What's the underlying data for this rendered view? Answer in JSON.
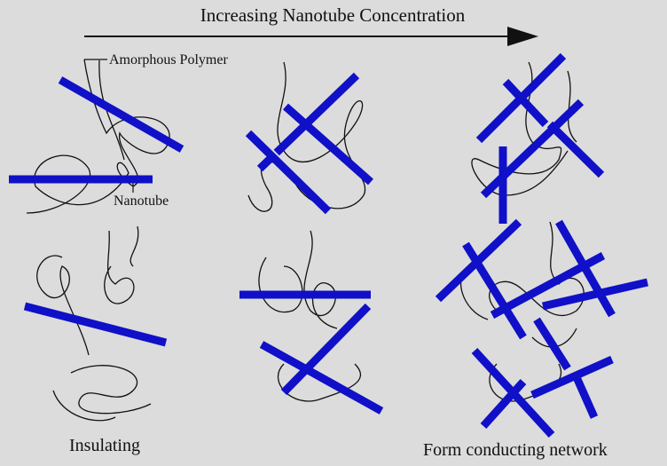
{
  "title": "Increasing Nanotube Concentration",
  "labels": {
    "polymer": "Amorphous Polymer",
    "nanotube": "Nanotube"
  },
  "captions": {
    "left": "Insulating",
    "right": "Form conducting network"
  }
}
